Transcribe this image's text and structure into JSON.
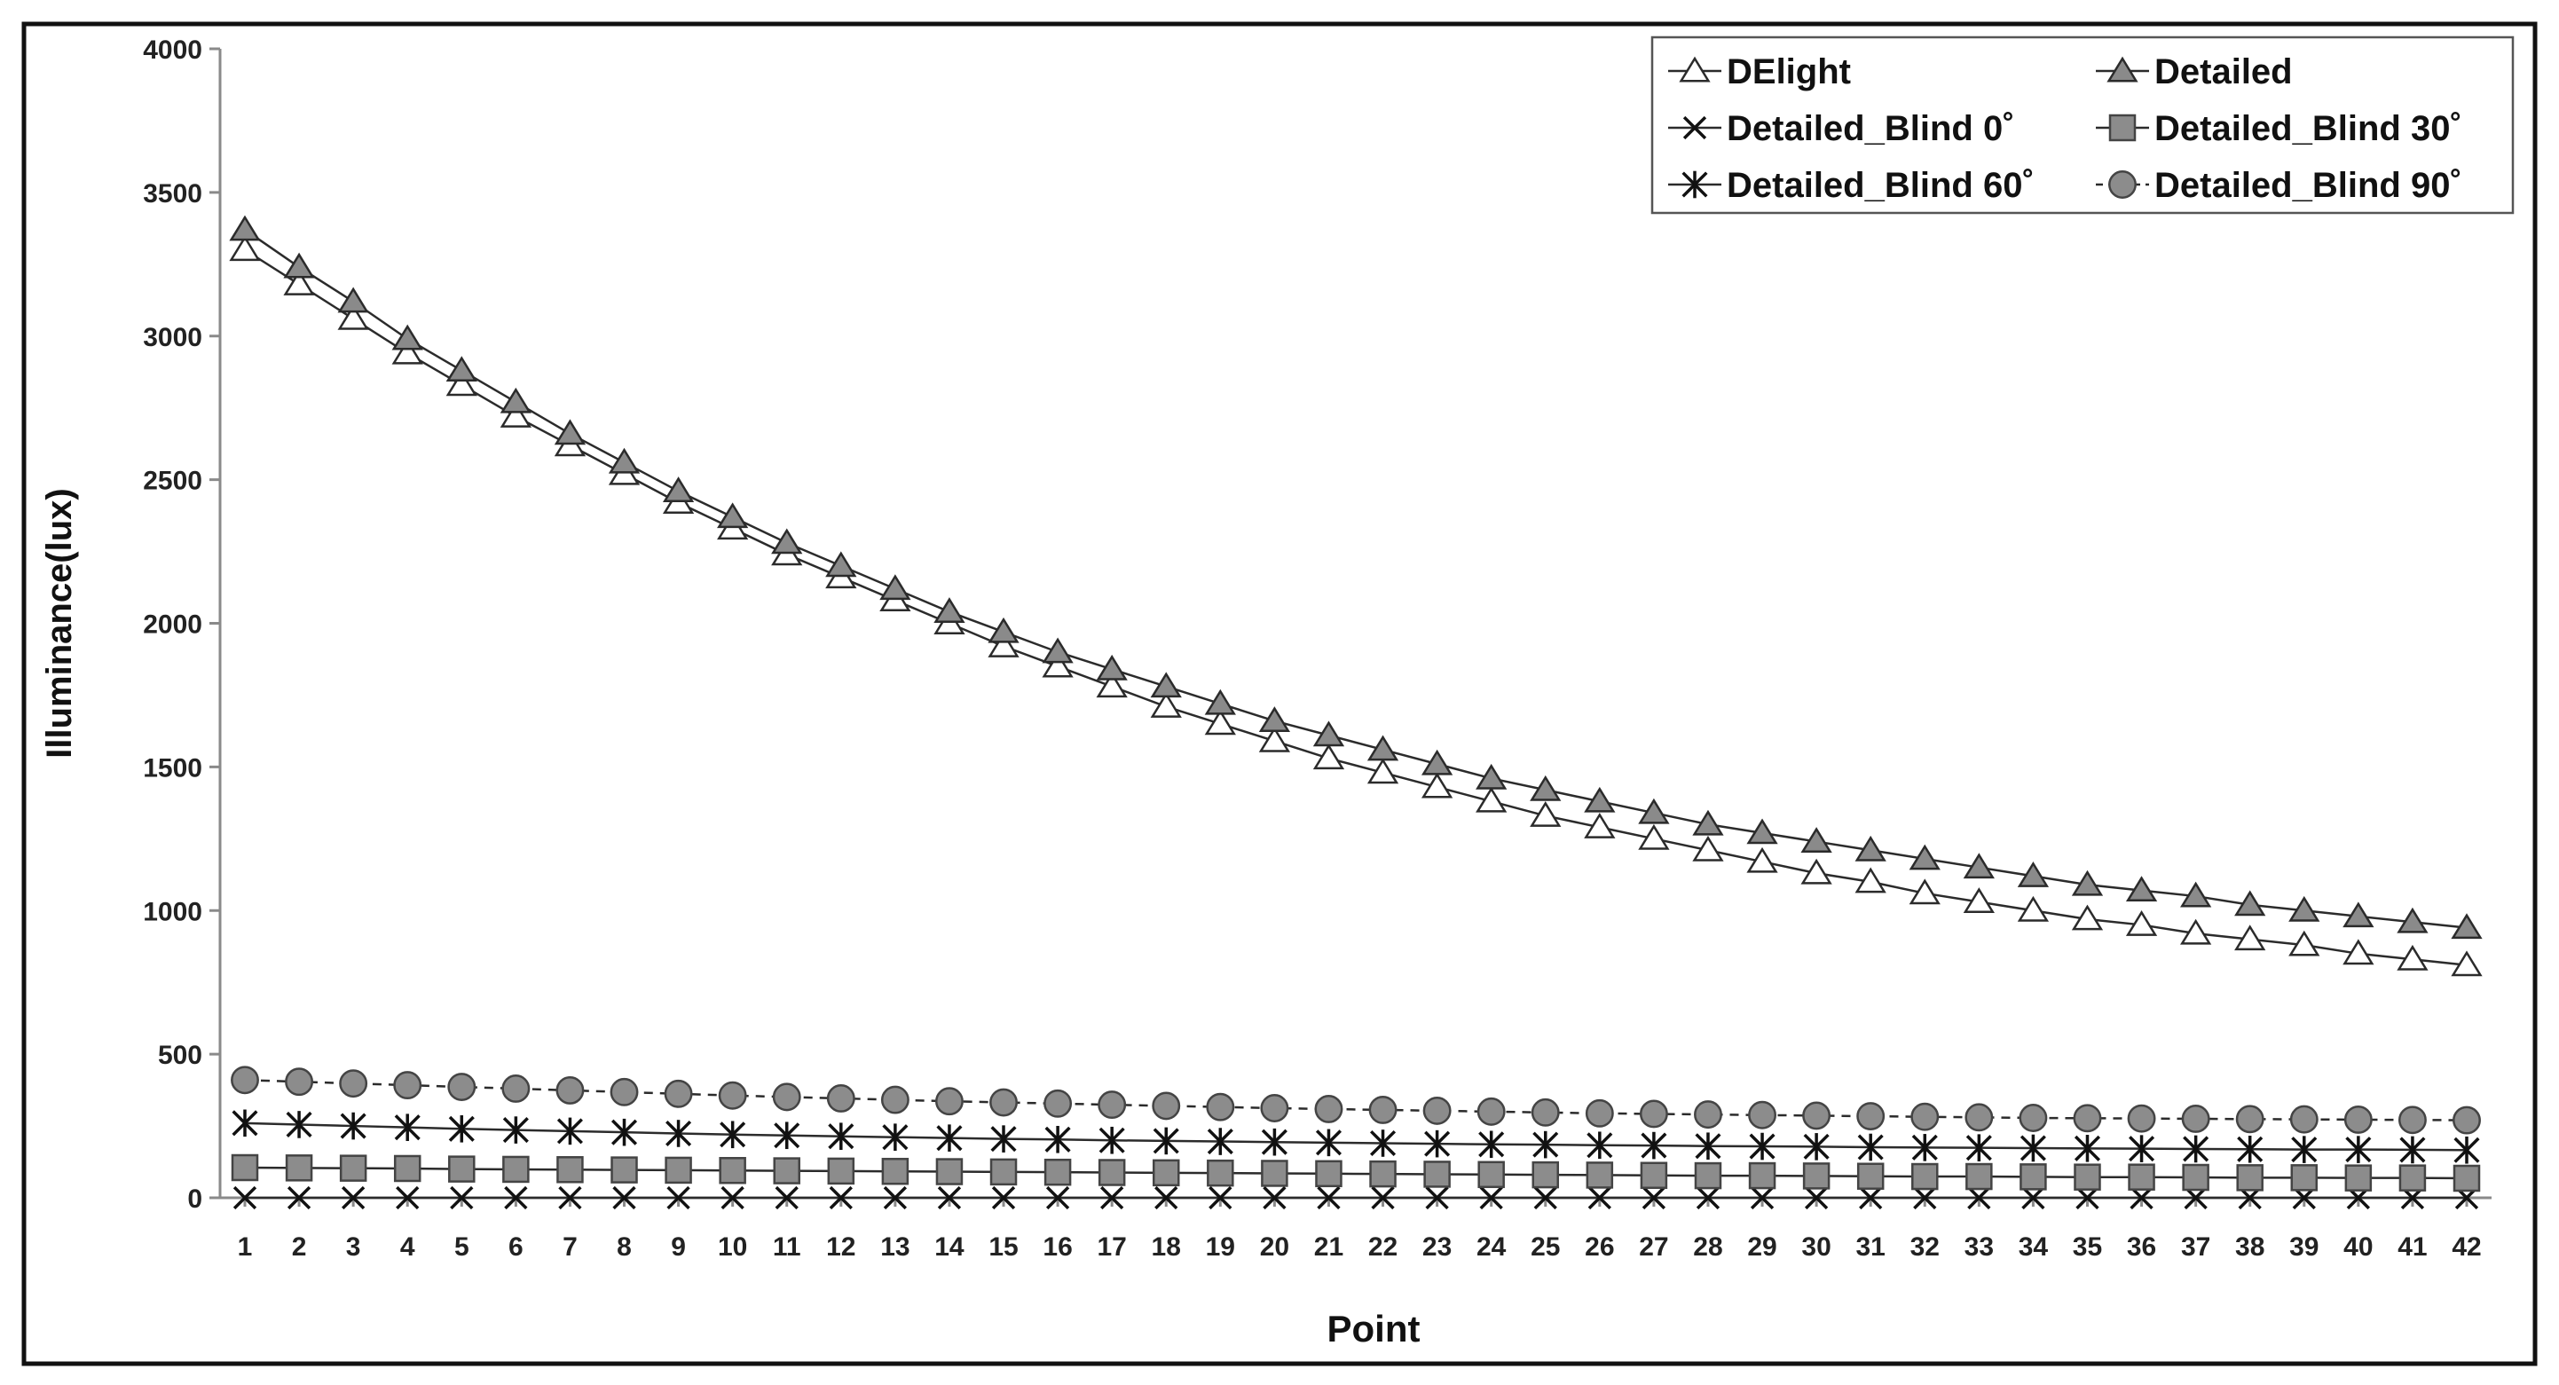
{
  "chart_data": {
    "type": "line",
    "xlabel": "Point",
    "ylabel": "Illuminance(lux)",
    "x": [
      1,
      2,
      3,
      4,
      5,
      6,
      7,
      8,
      9,
      10,
      11,
      12,
      13,
      14,
      15,
      16,
      17,
      18,
      19,
      20,
      21,
      22,
      23,
      24,
      25,
      26,
      27,
      28,
      29,
      30,
      31,
      32,
      33,
      34,
      35,
      36,
      37,
      38,
      39,
      40,
      41,
      42
    ],
    "ylim": [
      0,
      4000
    ],
    "yticks": [
      0,
      500,
      1000,
      1500,
      2000,
      2500,
      3000,
      3500,
      4000
    ],
    "grid": false,
    "legend_position": "top-right",
    "series": [
      {
        "name": "DElight",
        "marker": "triangle-open",
        "color": "#ffffff",
        "stroke": "#333333",
        "values": [
          3300,
          3180,
          3060,
          2940,
          2830,
          2720,
          2620,
          2520,
          2420,
          2330,
          2240,
          2160,
          2080,
          2000,
          1920,
          1850,
          1780,
          1710,
          1650,
          1590,
          1530,
          1480,
          1430,
          1380,
          1330,
          1290,
          1250,
          1210,
          1170,
          1130,
          1100,
          1060,
          1030,
          1000,
          970,
          950,
          920,
          900,
          880,
          850,
          830,
          810
        ]
      },
      {
        "name": "Detailed",
        "marker": "triangle-filled",
        "color": "#808080",
        "stroke": "#333333",
        "values": [
          3370,
          3240,
          3120,
          2990,
          2880,
          2770,
          2660,
          2560,
          2460,
          2370,
          2280,
          2200,
          2120,
          2040,
          1970,
          1900,
          1840,
          1780,
          1720,
          1660,
          1610,
          1560,
          1510,
          1460,
          1420,
          1380,
          1340,
          1300,
          1270,
          1240,
          1210,
          1180,
          1150,
          1120,
          1090,
          1070,
          1050,
          1020,
          1000,
          980,
          960,
          940
        ]
      },
      {
        "name": "Detailed_Blind 0˚",
        "marker": "x",
        "color": "#111111",
        "stroke": "#111111",
        "values": [
          0,
          0,
          0,
          0,
          0,
          0,
          0,
          0,
          0,
          0,
          0,
          0,
          0,
          0,
          0,
          0,
          0,
          0,
          0,
          0,
          0,
          0,
          0,
          0,
          0,
          0,
          0,
          0,
          0,
          0,
          0,
          0,
          0,
          0,
          0,
          0,
          0,
          0,
          0,
          0,
          0,
          0
        ]
      },
      {
        "name": "Detailed_Blind 30˚",
        "marker": "square-filled",
        "color": "#8c8c8c",
        "stroke": "#444444",
        "values": [
          105,
          104,
          103,
          102,
          100,
          99,
          98,
          97,
          96,
          95,
          94,
          93,
          92,
          91,
          90,
          89,
          88,
          87,
          86,
          85,
          84,
          83,
          82,
          81,
          80,
          79,
          78,
          77,
          77,
          76,
          75,
          74,
          74,
          73,
          72,
          72,
          71,
          70,
          70,
          69,
          69,
          68
        ]
      },
      {
        "name": "Detailed_Blind 60˚",
        "marker": "asterisk",
        "color": "#111111",
        "stroke": "#111111",
        "values": [
          260,
          255,
          250,
          245,
          240,
          236,
          232,
          228,
          224,
          220,
          217,
          214,
          211,
          208,
          205,
          203,
          200,
          198,
          196,
          194,
          192,
          190,
          188,
          186,
          185,
          183,
          182,
          180,
          179,
          178,
          176,
          175,
          174,
          173,
          172,
          171,
          170,
          169,
          168,
          168,
          167,
          166
        ]
      },
      {
        "name": "Detailed_Blind 90˚",
        "marker": "circle-filled",
        "color": "#8c8c8c",
        "stroke": "#444444",
        "values": [
          410,
          404,
          398,
          392,
          386,
          380,
          374,
          368,
          362,
          356,
          351,
          346,
          341,
          336,
          332,
          328,
          324,
          320,
          316,
          312,
          309,
          306,
          303,
          300,
          297,
          294,
          292,
          290,
          288,
          286,
          284,
          282,
          280,
          278,
          277,
          276,
          275,
          274,
          273,
          272,
          271,
          270
        ]
      }
    ]
  }
}
